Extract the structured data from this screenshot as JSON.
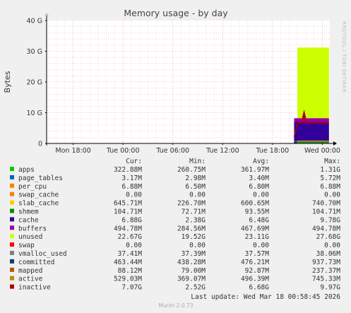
{
  "chart_data": {
    "type": "area",
    "title": "Memory usage - by day",
    "ylabel": "Bytes",
    "side_label": "RRDTOOL / TOBI OETIKER",
    "y_ticks": [
      "0",
      "10 G",
      "20 G",
      "30 G",
      "40 G"
    ],
    "y_tick_values": [
      0,
      10,
      20,
      30,
      40
    ],
    "ylim": [
      0,
      40
    ],
    "x_ticks": [
      "Mon 18:00",
      "Tue 00:00",
      "Tue 06:00",
      "Tue 12:00",
      "Tue 18:00",
      "Wed 00:00"
    ],
    "x_tick_hours": [
      0,
      6,
      12,
      18,
      24,
      30
    ],
    "xlim_hours": [
      -3.2,
      30.9
    ],
    "grid": true,
    "stack": {
      "unused_top_gb": 31.2,
      "unused_start_hour": 27.0,
      "buffers_top_gb": 8.2,
      "cache_top_gb": 6.9,
      "inactive_top_gb": 6.6,
      "data_start_hour": 26.6,
      "data_end_hour": 30.8,
      "spike_gb": 11.0,
      "spike_hour": 27.8
    },
    "columns": [
      "Cur:",
      "Min:",
      "Avg:",
      "Max:"
    ],
    "legend": [
      {
        "name": "apps",
        "color": "#00cc00",
        "cur": "322.88M",
        "min": "260.75M",
        "avg": "361.97M",
        "max": "1.31G"
      },
      {
        "name": "page_tables",
        "color": "#0066b3",
        "cur": "3.17M",
        "min": "2.98M",
        "avg": "3.40M",
        "max": "5.72M"
      },
      {
        "name": "per_cpu",
        "color": "#ff8000",
        "cur": "6.88M",
        "min": "6.50M",
        "avg": "6.80M",
        "max": "6.88M"
      },
      {
        "name": "swap_cache",
        "color": "#ff8000",
        "cur": "0.00",
        "min": "0.00",
        "avg": "0.00",
        "max": "0.00"
      },
      {
        "name": "slab_cache",
        "color": "#ffcc00",
        "cur": "645.71M",
        "min": "226.70M",
        "avg": "600.65M",
        "max": "740.70M"
      },
      {
        "name": "shmem",
        "color": "#008f00",
        "cur": "104.71M",
        "min": "72.71M",
        "avg": "93.55M",
        "max": "104.71M"
      },
      {
        "name": "cache",
        "color": "#330099",
        "cur": "6.88G",
        "min": "2.38G",
        "avg": "6.48G",
        "max": "9.78G"
      },
      {
        "name": "buffers",
        "color": "#990099",
        "cur": "494.78M",
        "min": "284.56M",
        "avg": "467.69M",
        "max": "494.78M"
      },
      {
        "name": "unused",
        "color": "#ccff00",
        "cur": "22.67G",
        "min": "19.52G",
        "avg": "23.11G",
        "max": "27.68G"
      },
      {
        "name": "swap",
        "color": "#ff0000",
        "cur": "0.00",
        "min": "0.00",
        "avg": "0.00",
        "max": "0.00"
      },
      {
        "name": "vmalloc_used",
        "color": "#808080",
        "cur": "37.41M",
        "min": "37.39M",
        "avg": "37.57M",
        "max": "38.06M"
      },
      {
        "name": "committed",
        "color": "#004080",
        "cur": "463.44M",
        "min": "438.28M",
        "avg": "476.21M",
        "max": "937.73M"
      },
      {
        "name": "mapped",
        "color": "#b35900",
        "cur": "88.12M",
        "min": "79.00M",
        "avg": "92.87M",
        "max": "237.37M"
      },
      {
        "name": "active",
        "color": "#b38f00",
        "cur": "529.03M",
        "min": "369.07M",
        "avg": "496.39M",
        "max": "745.33M"
      },
      {
        "name": "inactive",
        "color": "#b30000",
        "cur": "7.07G",
        "min": "2.52G",
        "avg": "6.68G",
        "max": "9.97G"
      }
    ],
    "last_update": "Last update: Wed Mar 18 00:58:45 2026",
    "footer": "Munin 2.0.73"
  }
}
